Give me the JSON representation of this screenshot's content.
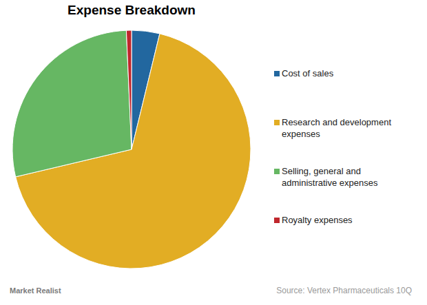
{
  "chart_data": {
    "type": "pie",
    "title": "Expense Breakdown",
    "categories": [
      "Cost of sales",
      "Research and development expenses",
      "Selling, general and administrative expenses",
      "Royalty expenses"
    ],
    "values": [
      3.8,
      67.5,
      28,
      0.7
    ],
    "colors": [
      "#22679f",
      "#e2ad24",
      "#66b763",
      "#c0272d"
    ],
    "legend": "right",
    "annotations": [
      "Source: Vertex Pharmaceuticals 10Q",
      "Market Realist"
    ]
  }
}
